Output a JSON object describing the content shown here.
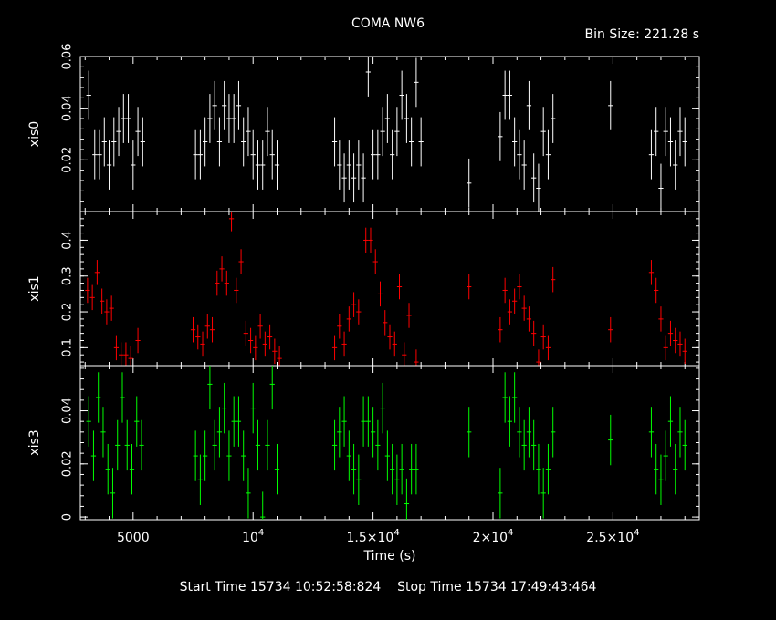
{
  "header": {
    "title": "COMA NW6",
    "bin_size": "Bin Size: 221.28 s"
  },
  "footer": {
    "start_label": "Start Time",
    "start_value": "15734 10:52:58:824",
    "stop_label": "Stop Time",
    "stop_value": "15734 17:49:43:464"
  },
  "chart_data": {
    "type": "scatter",
    "xlabel": "Time (s)",
    "xlim": [
      2800,
      28600
    ],
    "x_ticks": [
      {
        "value": 5000,
        "label": "5000",
        "sup": ""
      },
      {
        "value": 10000,
        "label": "10",
        "sup": "4"
      },
      {
        "value": 15000,
        "label": "1.5×10",
        "sup": "4"
      },
      {
        "value": 20000,
        "label": "2×10",
        "sup": "4"
      },
      {
        "value": 25000,
        "label": "2.5×10",
        "sup": "4"
      }
    ],
    "panels": [
      {
        "ylabel": "xis0",
        "color": "#ffffff",
        "ylim": [
          0.0,
          0.06
        ],
        "yticks": [
          0.02,
          0.04,
          0.06
        ],
        "yticklabels": [
          "0.02",
          "0.04",
          "0.06"
        ],
        "points": [
          [
            3150,
            0.045
          ],
          [
            3400,
            0.022
          ],
          [
            3600,
            0.022
          ],
          [
            3800,
            0.027
          ],
          [
            4000,
            0.018
          ],
          [
            4200,
            0.027
          ],
          [
            4400,
            0.031
          ],
          [
            4600,
            0.036
          ],
          [
            4800,
            0.036
          ],
          [
            5000,
            0.018
          ],
          [
            5200,
            0.031
          ],
          [
            5400,
            0.027
          ],
          [
            7600,
            0.022
          ],
          [
            7800,
            0.022
          ],
          [
            8000,
            0.027
          ],
          [
            8200,
            0.036
          ],
          [
            8400,
            0.041
          ],
          [
            8600,
            0.027
          ],
          [
            8800,
            0.041
          ],
          [
            9000,
            0.036
          ],
          [
            9200,
            0.036
          ],
          [
            9400,
            0.041
          ],
          [
            9600,
            0.027
          ],
          [
            9800,
            0.031
          ],
          [
            10000,
            0.022
          ],
          [
            10200,
            0.018
          ],
          [
            10400,
            0.018
          ],
          [
            10600,
            0.031
          ],
          [
            10800,
            0.022
          ],
          [
            11000,
            0.018
          ],
          [
            13400,
            0.027
          ],
          [
            13600,
            0.018
          ],
          [
            13800,
            0.013
          ],
          [
            14000,
            0.018
          ],
          [
            14200,
            0.013
          ],
          [
            14400,
            0.018
          ],
          [
            14600,
            0.013
          ],
          [
            14800,
            0.054
          ],
          [
            15000,
            0.022
          ],
          [
            15200,
            0.022
          ],
          [
            15400,
            0.031
          ],
          [
            15600,
            0.036
          ],
          [
            15800,
            0.022
          ],
          [
            16000,
            0.031
          ],
          [
            16200,
            0.045
          ],
          [
            16400,
            0.036
          ],
          [
            16600,
            0.027
          ],
          [
            16800,
            0.05
          ],
          [
            17000,
            0.027
          ],
          [
            19000,
            0.011
          ],
          [
            20300,
            0.029
          ],
          [
            20500,
            0.045
          ],
          [
            20700,
            0.045
          ],
          [
            20900,
            0.027
          ],
          [
            21100,
            0.022
          ],
          [
            21300,
            0.018
          ],
          [
            21500,
            0.041
          ],
          [
            21700,
            0.013
          ],
          [
            21900,
            0.009
          ],
          [
            22100,
            0.031
          ],
          [
            22300,
            0.022
          ],
          [
            22500,
            0.036
          ],
          [
            24900,
            0.041
          ],
          [
            26600,
            0.022
          ],
          [
            26800,
            0.031
          ],
          [
            27000,
            0.009
          ],
          [
            27200,
            0.031
          ],
          [
            27400,
            0.027
          ],
          [
            27600,
            0.018
          ],
          [
            27800,
            0.031
          ],
          [
            28000,
            0.027
          ]
        ]
      },
      {
        "ylabel": "xis1",
        "color": "#ff0000",
        "ylim": [
          0.05,
          0.48
        ],
        "yticks": [
          0.1,
          0.2,
          0.3,
          0.4
        ],
        "yticklabels": [
          "0.1",
          "0.2",
          "0.3",
          "0.4"
        ],
        "points": [
          [
            3100,
            0.26
          ],
          [
            3300,
            0.24
          ],
          [
            3500,
            0.31
          ],
          [
            3700,
            0.23
          ],
          [
            3900,
            0.2
          ],
          [
            4100,
            0.21
          ],
          [
            4300,
            0.1
          ],
          [
            4500,
            0.08
          ],
          [
            4700,
            0.08
          ],
          [
            4900,
            0.07
          ],
          [
            5200,
            0.12
          ],
          [
            7500,
            0.15
          ],
          [
            7700,
            0.13
          ],
          [
            7900,
            0.11
          ],
          [
            8100,
            0.16
          ],
          [
            8300,
            0.15
          ],
          [
            8500,
            0.28
          ],
          [
            8700,
            0.32
          ],
          [
            8900,
            0.28
          ],
          [
            9100,
            0.46
          ],
          [
            9300,
            0.26
          ],
          [
            9500,
            0.34
          ],
          [
            9700,
            0.14
          ],
          [
            9900,
            0.12
          ],
          [
            10100,
            0.1
          ],
          [
            10300,
            0.16
          ],
          [
            10500,
            0.11
          ],
          [
            10700,
            0.13
          ],
          [
            10900,
            0.09
          ],
          [
            11100,
            0.07
          ],
          [
            13400,
            0.1
          ],
          [
            13600,
            0.16
          ],
          [
            13800,
            0.11
          ],
          [
            14000,
            0.18
          ],
          [
            14200,
            0.22
          ],
          [
            14400,
            0.2
          ],
          [
            14700,
            0.4
          ],
          [
            14900,
            0.4
          ],
          [
            15100,
            0.34
          ],
          [
            15300,
            0.25
          ],
          [
            15500,
            0.17
          ],
          [
            15700,
            0.13
          ],
          [
            15900,
            0.11
          ],
          [
            16100,
            0.27
          ],
          [
            16300,
            0.08
          ],
          [
            16500,
            0.19
          ],
          [
            16800,
            0.06
          ],
          [
            19000,
            0.27
          ],
          [
            20300,
            0.15
          ],
          [
            20500,
            0.26
          ],
          [
            20700,
            0.2
          ],
          [
            20900,
            0.23
          ],
          [
            21100,
            0.27
          ],
          [
            21300,
            0.21
          ],
          [
            21500,
            0.18
          ],
          [
            21700,
            0.14
          ],
          [
            21900,
            0.06
          ],
          [
            22100,
            0.13
          ],
          [
            22300,
            0.1
          ],
          [
            22500,
            0.29
          ],
          [
            24900,
            0.15
          ],
          [
            26600,
            0.31
          ],
          [
            26800,
            0.26
          ],
          [
            27000,
            0.18
          ],
          [
            27200,
            0.1
          ],
          [
            27400,
            0.14
          ],
          [
            27600,
            0.12
          ],
          [
            27800,
            0.11
          ],
          [
            28000,
            0.09
          ]
        ]
      },
      {
        "ylabel": "xis3",
        "color": "#00ff00",
        "ylim": [
          -0.001,
          0.057
        ],
        "yticks": [
          0.0,
          0.02,
          0.04
        ],
        "yticklabels": [
          "0",
          "0.02",
          "0.04"
        ],
        "points": [
          [
            3150,
            0.036
          ],
          [
            3350,
            0.023
          ],
          [
            3550,
            0.045
          ],
          [
            3750,
            0.032
          ],
          [
            3950,
            0.018
          ],
          [
            4150,
            0.009
          ],
          [
            4350,
            0.027
          ],
          [
            4550,
            0.045
          ],
          [
            4750,
            0.027
          ],
          [
            4950,
            0.018
          ],
          [
            5150,
            0.036
          ],
          [
            5350,
            0.027
          ],
          [
            7600,
            0.023
          ],
          [
            7800,
            0.014
          ],
          [
            8000,
            0.023
          ],
          [
            8200,
            0.05
          ],
          [
            8400,
            0.027
          ],
          [
            8600,
            0.032
          ],
          [
            8800,
            0.041
          ],
          [
            9000,
            0.023
          ],
          [
            9200,
            0.036
          ],
          [
            9400,
            0.036
          ],
          [
            9600,
            0.023
          ],
          [
            9800,
            0.009
          ],
          [
            10000,
            0.041
          ],
          [
            10200,
            0.027
          ],
          [
            10400,
            0.0
          ],
          [
            10600,
            0.027
          ],
          [
            10800,
            0.05
          ],
          [
            11000,
            0.018
          ],
          [
            13400,
            0.027
          ],
          [
            13600,
            0.032
          ],
          [
            13800,
            0.036
          ],
          [
            14000,
            0.023
          ],
          [
            14200,
            0.018
          ],
          [
            14400,
            0.014
          ],
          [
            14600,
            0.036
          ],
          [
            14800,
            0.036
          ],
          [
            15000,
            0.032
          ],
          [
            15200,
            0.027
          ],
          [
            15400,
            0.041
          ],
          [
            15600,
            0.023
          ],
          [
            15800,
            0.018
          ],
          [
            16000,
            0.014
          ],
          [
            16200,
            0.018
          ],
          [
            16400,
            0.005
          ],
          [
            16600,
            0.018
          ],
          [
            16800,
            0.018
          ],
          [
            19000,
            0.032
          ],
          [
            20300,
            0.009
          ],
          [
            20500,
            0.045
          ],
          [
            20700,
            0.036
          ],
          [
            20900,
            0.045
          ],
          [
            21100,
            0.032
          ],
          [
            21300,
            0.027
          ],
          [
            21500,
            0.032
          ],
          [
            21700,
            0.027
          ],
          [
            21900,
            0.018
          ],
          [
            22100,
            0.009
          ],
          [
            22300,
            0.018
          ],
          [
            22500,
            0.032
          ],
          [
            24900,
            0.029
          ],
          [
            26600,
            0.032
          ],
          [
            26800,
            0.018
          ],
          [
            27000,
            0.014
          ],
          [
            27200,
            0.023
          ],
          [
            27400,
            0.036
          ],
          [
            27600,
            0.018
          ],
          [
            27800,
            0.032
          ],
          [
            28000,
            0.027
          ]
        ]
      }
    ]
  }
}
